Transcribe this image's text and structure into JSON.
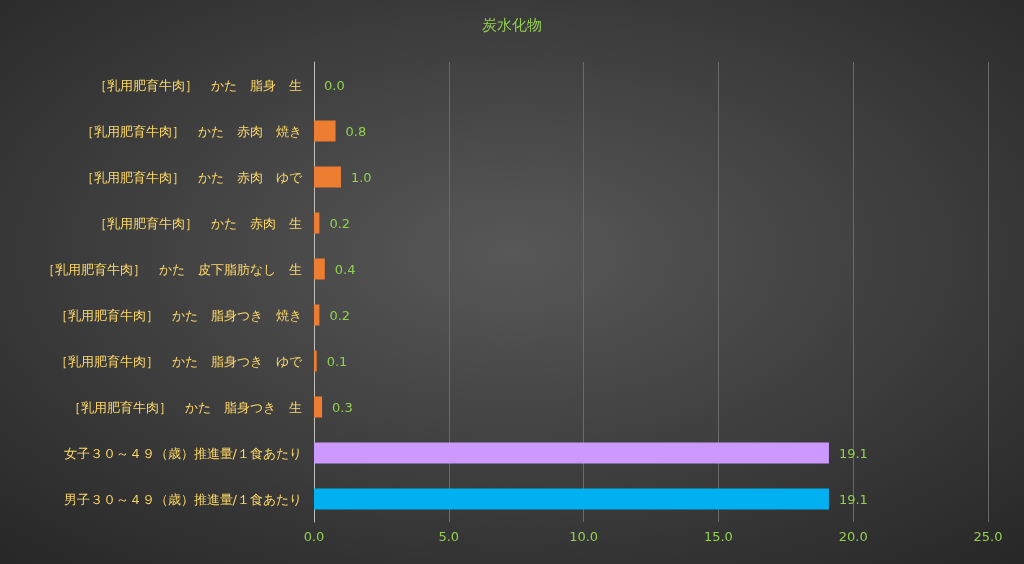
{
  "chart_data": {
    "type": "bar",
    "orientation": "horizontal",
    "title": "炭水化物",
    "categories": [
      "［乳用肥育牛肉］　かた　脂身　生",
      "［乳用肥育牛肉］　かた　赤肉　焼き",
      "［乳用肥育牛肉］　かた　赤肉　ゆで",
      "［乳用肥育牛肉］　かた　赤肉　生",
      "［乳用肥育牛肉］　かた　皮下脂肪なし　生",
      "［乳用肥育牛肉］　かた　脂身つき　焼き",
      "［乳用肥育牛肉］　かた　脂身つき　ゆで",
      "［乳用肥育牛肉］　かた　脂身つき　生",
      "女子３０～４９（歳）推進量/１食あたり",
      "男子３０～４９（歳）推進量/１食あたり"
    ],
    "values": [
      0,
      0.8,
      1.0,
      0.2,
      0.4,
      0.2,
      0.1,
      0.3,
      19.1,
      19.1
    ],
    "value_labels": [
      "0.0",
      "0.8",
      "1.0",
      "0.2",
      "0.4",
      "0.2",
      "0.1",
      "0.3",
      "19.1",
      "19.1"
    ],
    "colors": [
      "#ed7d31",
      "#ed7d31",
      "#ed7d31",
      "#ed7d31",
      "#ed7d31",
      "#ed7d31",
      "#ed7d31",
      "#ed7d31",
      "#cc99ff",
      "#00b0f0"
    ],
    "xlim": [
      0,
      25
    ],
    "xticks": [
      {
        "value": 0,
        "label": "0.0"
      },
      {
        "value": 5,
        "label": "5.0"
      },
      {
        "value": 10,
        "label": "10.0"
      },
      {
        "value": 15,
        "label": "15.0"
      },
      {
        "value": 20,
        "label": "20.0"
      },
      {
        "value": 25,
        "label": "25.0"
      }
    ],
    "grid": "x"
  }
}
